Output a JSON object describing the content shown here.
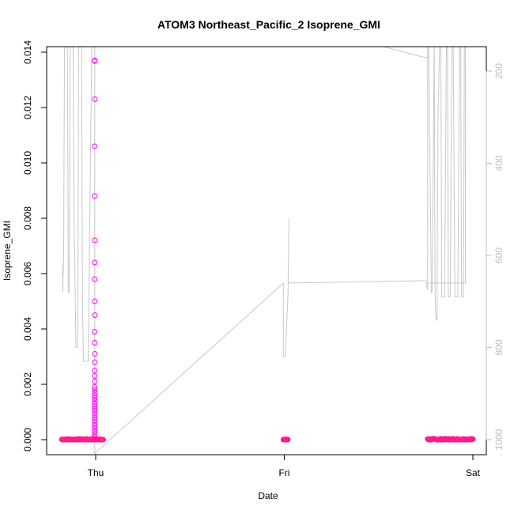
{
  "chart_data": {
    "type": "scatter",
    "title": "ATOM3 Northeast_Pacific_2 Isoprene_GMI",
    "xlabel": "Date",
    "ylabel": "Isoprene_GMI",
    "x_ticks": [
      "Thu",
      "Fri",
      "Sat"
    ],
    "x_range_days": [
      -0.2,
      2.0
    ],
    "ylim": [
      -0.0002,
      0.0142
    ],
    "y_ticks": [
      0.0,
      0.002,
      0.004,
      0.006,
      0.008,
      0.01,
      0.012,
      0.014
    ],
    "y_tick_labels": [
      "0.000",
      "0.002",
      "0.004",
      "0.006",
      "0.008",
      "0.010",
      "0.012",
      "0.014"
    ],
    "right_axis": {
      "ylim": [
        1035,
        120
      ],
      "ticks": [
        200,
        400,
        600,
        800,
        1000
      ],
      "tick_labels": [
        "200",
        "400",
        "600",
        "800",
        "1000"
      ],
      "inverted": true,
      "color": "#bdbdbd"
    },
    "series": [
      {
        "marker": "open-circle",
        "color": "#ff00ff",
        "points": [
          [
            -0.005,
            0.0137
          ],
          [
            -0.005,
            0.01368
          ],
          [
            -0.004,
            0.0123
          ],
          [
            -0.006,
            0.0106
          ],
          [
            -0.005,
            0.0088
          ],
          [
            -0.004,
            0.0072
          ],
          [
            -0.005,
            0.0064
          ],
          [
            -0.006,
            0.0058
          ],
          [
            -0.005,
            0.005
          ],
          [
            -0.004,
            0.0045
          ],
          [
            -0.006,
            0.0039
          ],
          [
            -0.005,
            0.0035
          ],
          [
            -0.004,
            0.0031
          ],
          [
            -0.005,
            0.0028
          ],
          [
            -0.006,
            0.0025
          ],
          [
            -0.005,
            0.0023
          ],
          [
            -0.005,
            0.0021
          ],
          [
            -0.006,
            0.0019
          ],
          [
            -0.005,
            0.0018
          ],
          [
            -0.004,
            0.0017
          ],
          [
            -0.006,
            0.0016
          ],
          [
            -0.005,
            0.0015
          ],
          [
            -0.004,
            0.0014
          ],
          [
            -0.006,
            0.0013
          ],
          [
            -0.005,
            0.0012
          ],
          [
            -0.006,
            0.0011
          ],
          [
            -0.005,
            0.001
          ],
          [
            -0.004,
            0.0009
          ],
          [
            -0.006,
            0.0008
          ],
          [
            -0.005,
            0.0007
          ],
          [
            -0.006,
            0.0006
          ],
          [
            -0.005,
            0.0005
          ],
          [
            -0.004,
            0.0004
          ],
          [
            -0.006,
            0.0003
          ],
          [
            -0.005,
            0.0002
          ],
          [
            -0.006,
            0.0001
          ]
        ]
      },
      {
        "marker": "open-circle",
        "color": "#ff1a8c",
        "segments": [
          {
            "x_start": -0.18,
            "x_end": 0.04,
            "y": 0.0,
            "jitter": 4e-05,
            "step": 0.004
          },
          {
            "x_start": 0.995,
            "x_end": 1.02,
            "y": 0.0,
            "jitter": 2e-05,
            "step": 0.003
          },
          {
            "x_start": 1.76,
            "x_end": 2.0,
            "y": 0.0,
            "jitter": 5e-05,
            "step": 0.003
          }
        ]
      }
    ],
    "altitude_line": {
      "color": "#c8c8c8",
      "points": [
        [
          -0.175,
          620
        ],
        [
          -0.175,
          680
        ],
        [
          -0.17,
          600
        ],
        [
          -0.165,
          120
        ],
        [
          -0.16,
          120
        ],
        [
          -0.15,
          120
        ],
        [
          -0.145,
          680
        ],
        [
          -0.14,
          680
        ],
        [
          -0.135,
          120
        ],
        [
          -0.12,
          120
        ],
        [
          -0.115,
          500
        ],
        [
          -0.105,
          800
        ],
        [
          -0.095,
          800
        ],
        [
          -0.09,
          150
        ],
        [
          -0.085,
          120
        ],
        [
          -0.075,
          120
        ],
        [
          -0.07,
          700
        ],
        [
          -0.065,
          830
        ],
        [
          -0.04,
          830
        ],
        [
          -0.02,
          120
        ],
        [
          -0.005,
          120
        ],
        [
          -0.005,
          1030
        ],
        [
          0.995,
          660
        ],
        [
          0.995,
          820
        ],
        [
          1.005,
          820
        ],
        [
          1.02,
          680
        ],
        [
          1.025,
          520
        ],
        [
          1.02,
          660
        ],
        [
          1.74,
          655
        ],
        [
          1.75,
          655
        ],
        [
          1.76,
          675
        ],
        [
          1.76,
          120
        ],
        [
          1.765,
          120
        ],
        [
          1.78,
          680
        ],
        [
          1.785,
          680
        ],
        [
          1.79,
          400
        ],
        [
          1.795,
          120
        ],
        [
          1.8,
          700
        ],
        [
          1.805,
          740
        ],
        [
          1.81,
          740
        ],
        [
          1.815,
          300
        ],
        [
          1.825,
          120
        ],
        [
          1.83,
          120
        ],
        [
          1.835,
          690
        ],
        [
          1.845,
          690
        ],
        [
          1.85,
          690
        ],
        [
          1.86,
          120
        ],
        [
          1.865,
          120
        ],
        [
          1.87,
          690
        ],
        [
          1.88,
          690
        ],
        [
          1.885,
          350
        ],
        [
          1.89,
          120
        ],
        [
          1.895,
          120
        ],
        [
          1.905,
          690
        ],
        [
          1.92,
          690
        ],
        [
          1.93,
          120
        ],
        [
          1.935,
          120
        ],
        [
          1.94,
          690
        ],
        [
          1.95,
          690
        ],
        [
          1.955,
          120
        ],
        [
          1.96,
          120
        ],
        [
          1.96,
          660
        ],
        [
          1.75,
          660
        ]
      ],
      "descent_segment": [
        [
          1.28,
          120
        ],
        [
          1.74,
          170
        ],
        [
          1.76,
          170
        ]
      ]
    }
  }
}
